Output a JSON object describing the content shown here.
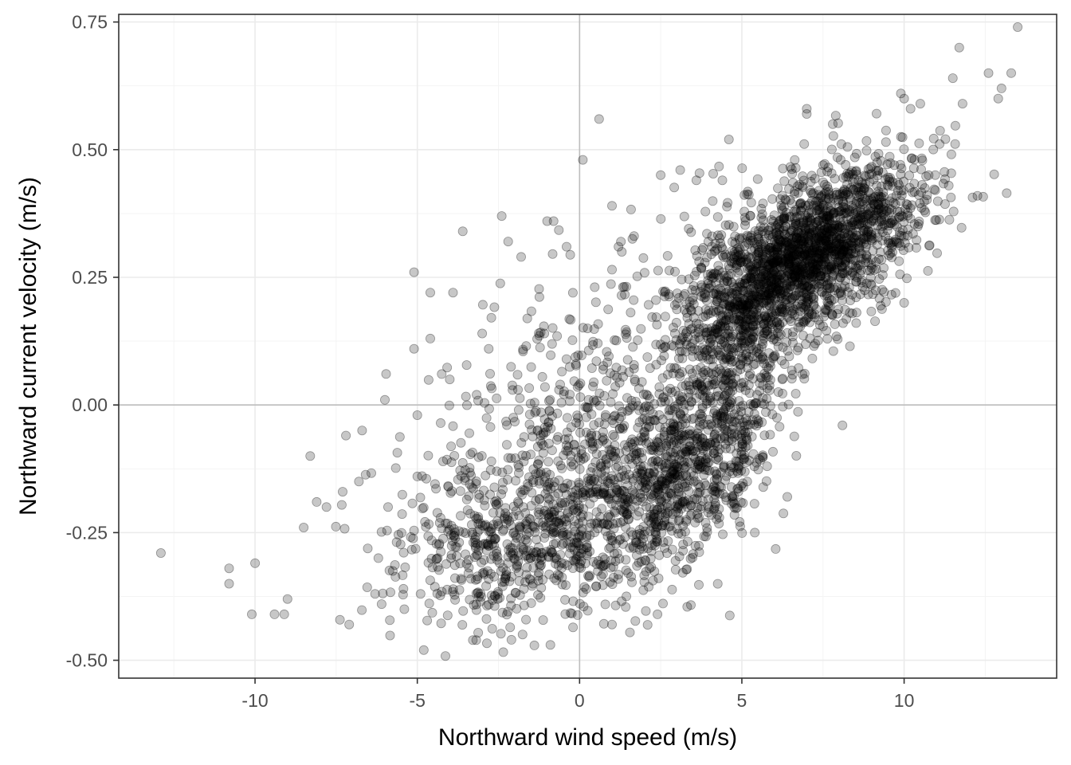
{
  "chart_data": {
    "type": "scatter",
    "title": "",
    "xlabel": "Northward wind speed (m/s)",
    "ylabel": "Northward current velocity (m/s)",
    "xlim": [
      -14.2,
      14.7
    ],
    "ylim": [
      -0.535,
      0.765
    ],
    "xticks": [
      -10,
      -5,
      0,
      5,
      10
    ],
    "xtick_labels": [
      "-10",
      "-5",
      "0",
      "5",
      "10"
    ],
    "yticks": [
      -0.5,
      -0.25,
      0.0,
      0.25,
      0.5,
      0.75
    ],
    "ytick_labels": [
      "-0.50",
      "-0.25",
      "0.00",
      "0.25",
      "0.50",
      "0.75"
    ],
    "reference_lines": {
      "x": 0,
      "y": 0
    },
    "grid": true,
    "marker_color": "#000000",
    "marker_alpha": 0.22,
    "n_points": 4300,
    "outliers": [
      {
        "x": -12.9,
        "y": -0.29
      },
      {
        "x": -10.1,
        "y": -0.41
      },
      {
        "x": -10.8,
        "y": -0.35
      },
      {
        "x": -10.8,
        "y": -0.32
      },
      {
        "x": -10.0,
        "y": -0.31
      },
      {
        "x": -9.4,
        "y": -0.41
      },
      {
        "x": -9.1,
        "y": -0.41
      },
      {
        "x": -9.0,
        "y": -0.38
      },
      {
        "x": -8.5,
        "y": -0.24
      },
      {
        "x": -8.3,
        "y": -0.1
      },
      {
        "x": -8.1,
        "y": -0.19
      },
      {
        "x": -7.8,
        "y": -0.2
      },
      {
        "x": -7.3,
        "y": -0.17
      },
      {
        "x": -7.2,
        "y": -0.06
      },
      {
        "x": -7.1,
        "y": -0.43
      },
      {
        "x": -6.8,
        "y": -0.15
      },
      {
        "x": -6.7,
        "y": -0.05
      },
      {
        "x": -6.0,
        "y": 0.01
      },
      {
        "x": -5.9,
        "y": -0.2
      },
      {
        "x": -5.1,
        "y": 0.26
      },
      {
        "x": -5.1,
        "y": 0.11
      },
      {
        "x": -4.6,
        "y": 0.22
      },
      {
        "x": -4.6,
        "y": 0.13
      },
      {
        "x": -3.9,
        "y": 0.22
      },
      {
        "x": -3.6,
        "y": 0.34
      },
      {
        "x": -2.4,
        "y": 0.37
      },
      {
        "x": -2.2,
        "y": 0.32
      },
      {
        "x": -1.8,
        "y": 0.29
      },
      {
        "x": -1.0,
        "y": 0.36
      },
      {
        "x": -0.8,
        "y": 0.36
      },
      {
        "x": -0.4,
        "y": 0.31
      },
      {
        "x": 0.1,
        "y": 0.48
      },
      {
        "x": 0.6,
        "y": 0.56
      },
      {
        "x": -0.9,
        "y": -0.47
      },
      {
        "x": -4.8,
        "y": -0.48
      },
      {
        "x": 2.4,
        "y": -0.41
      },
      {
        "x": 1.0,
        "y": -0.43
      },
      {
        "x": -2.1,
        "y": -0.46
      },
      {
        "x": 5.4,
        "y": -0.25
      },
      {
        "x": 6.4,
        "y": -0.18
      },
      {
        "x": 8.1,
        "y": -0.04
      },
      {
        "x": 7.8,
        "y": 0.55
      },
      {
        "x": 7.0,
        "y": 0.58
      },
      {
        "x": 7.0,
        "y": 0.57
      },
      {
        "x": 9.9,
        "y": 0.61
      },
      {
        "x": 10.0,
        "y": 0.6
      },
      {
        "x": 10.2,
        "y": 0.58
      },
      {
        "x": 10.5,
        "y": 0.59
      },
      {
        "x": 11.5,
        "y": 0.64
      },
      {
        "x": 11.7,
        "y": 0.7
      },
      {
        "x": 11.8,
        "y": 0.59
      },
      {
        "x": 12.6,
        "y": 0.65
      },
      {
        "x": 13.0,
        "y": 0.62
      },
      {
        "x": 13.3,
        "y": 0.65
      },
      {
        "x": 13.5,
        "y": 0.74
      },
      {
        "x": 12.9,
        "y": 0.6
      },
      {
        "x": 10.0,
        "y": 0.2
      },
      {
        "x": 4.6,
        "y": 0.52
      },
      {
        "x": 3.1,
        "y": 0.46
      },
      {
        "x": 2.5,
        "y": 0.45
      },
      {
        "x": 3.6,
        "y": 0.44
      },
      {
        "x": 4.4,
        "y": 0.44
      },
      {
        "x": 1.0,
        "y": 0.39
      },
      {
        "x": 1.3,
        "y": 0.3
      },
      {
        "x": 1.2,
        "y": 0.31
      },
      {
        "x": -3.0,
        "y": 0.14
      },
      {
        "x": -2.8,
        "y": 0.11
      },
      {
        "x": -4.0,
        "y": 0.05
      },
      {
        "x": -5.0,
        "y": -0.02
      },
      {
        "x": -5.0,
        "y": -0.14
      },
      {
        "x": -6.1,
        "y": -0.39
      },
      {
        "x": -6.3,
        "y": -0.37
      },
      {
        "x": -5.4,
        "y": -0.4
      },
      {
        "x": -4.9,
        "y": -0.37
      },
      {
        "x": -6.2,
        "y": -0.3
      }
    ],
    "clusters": [
      {
        "cx": 6.9,
        "cy": 0.29,
        "sx": 1.65,
        "sy": 0.085,
        "rho": 0.55,
        "weight": 0.4
      },
      {
        "cx": 4.9,
        "cy": 0.13,
        "sx": 1.3,
        "sy": 0.09,
        "rho": 0.4,
        "weight": 0.1
      },
      {
        "cx": 3.4,
        "cy": -0.12,
        "sx": 1.35,
        "sy": 0.09,
        "rho": 0.55,
        "weight": 0.15
      },
      {
        "cx": 0.6,
        "cy": -0.17,
        "sx": 2.1,
        "sy": 0.12,
        "rho": 0.2,
        "weight": 0.15
      },
      {
        "cx": -2.4,
        "cy": -0.28,
        "sx": 1.8,
        "sy": 0.085,
        "rho": 0.2,
        "weight": 0.1
      },
      {
        "cx": 1.0,
        "cy": 0.08,
        "sx": 2.9,
        "sy": 0.16,
        "rho": 0.6,
        "weight": 0.07
      },
      {
        "cx": 9.2,
        "cy": 0.4,
        "sx": 1.2,
        "sy": 0.06,
        "rho": 0.4,
        "weight": 0.03
      }
    ]
  }
}
